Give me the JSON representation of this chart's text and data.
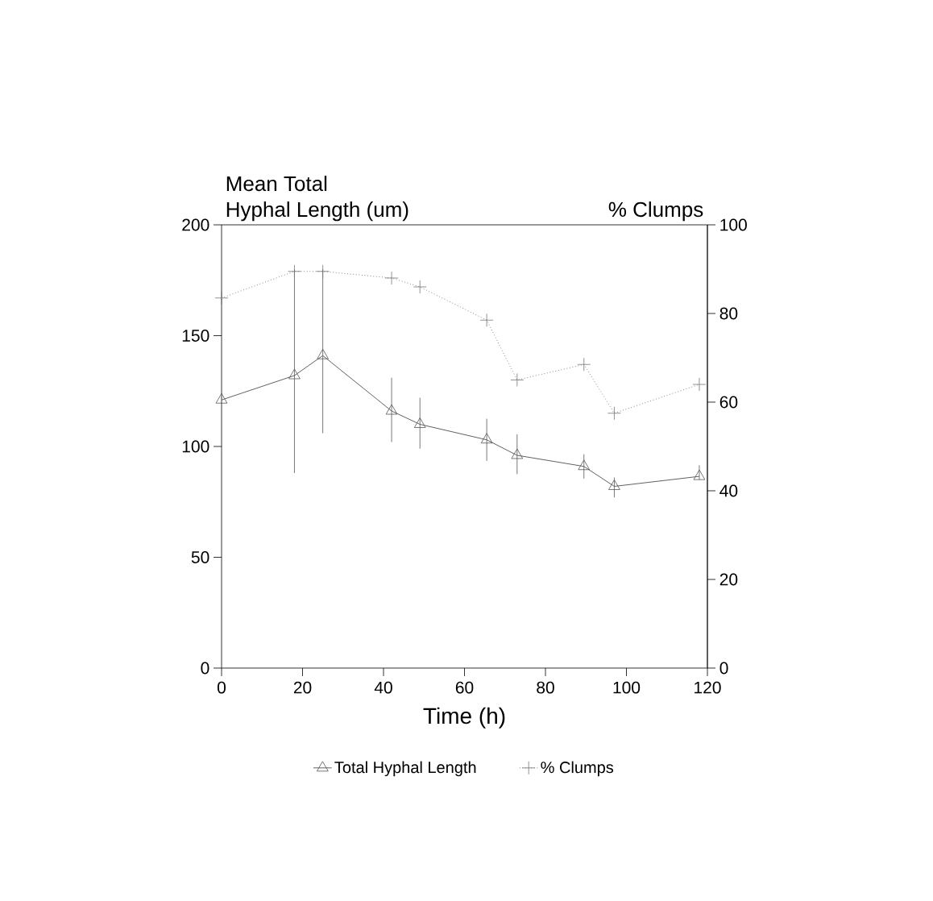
{
  "chart_data": {
    "type": "line",
    "xlabel": "Time (h)",
    "ylabel": "Mean Total\nHyphal Length (um)",
    "y2label": "% Clumps",
    "x": [
      0,
      18,
      25,
      42,
      49,
      65.5,
      73,
      89.5,
      97,
      118
    ],
    "series": [
      {
        "name": "Total Hyphal Length",
        "color": "#555555",
        "marker": "triangle",
        "line_style": "solid",
        "values": [
          121,
          132,
          141,
          116,
          110,
          103,
          96,
          91,
          82,
          86.5
        ],
        "errors": [
          null,
          [
            88,
            180
          ],
          [
            106,
            180
          ],
          [
            102,
            131
          ],
          [
            99,
            122
          ],
          [
            93.5,
            112.5
          ],
          [
            87.5,
            105.5
          ],
          [
            85.5,
            96.5
          ],
          [
            77,
            86
          ],
          [
            85,
            91.5
          ]
        ]
      },
      {
        "name": "% Clumps",
        "color": "#777777",
        "marker": "cross",
        "line_style": "dotted",
        "axis": "y2",
        "values": [
          83.5,
          89.5,
          89.5,
          88,
          86,
          78.5,
          65,
          68.5,
          57.5,
          64
        ]
      }
    ],
    "xlim": [
      0,
      120
    ],
    "xticks": [
      0,
      20,
      40,
      60,
      80,
      100,
      120
    ],
    "ylim": [
      0,
      200
    ],
    "yticks": [
      0,
      50,
      100,
      150,
      200
    ],
    "y2lim": [
      0,
      100
    ],
    "y2ticks": [
      0,
      20,
      40,
      60,
      80,
      100
    ],
    "grid": false,
    "legend": "bottom"
  }
}
